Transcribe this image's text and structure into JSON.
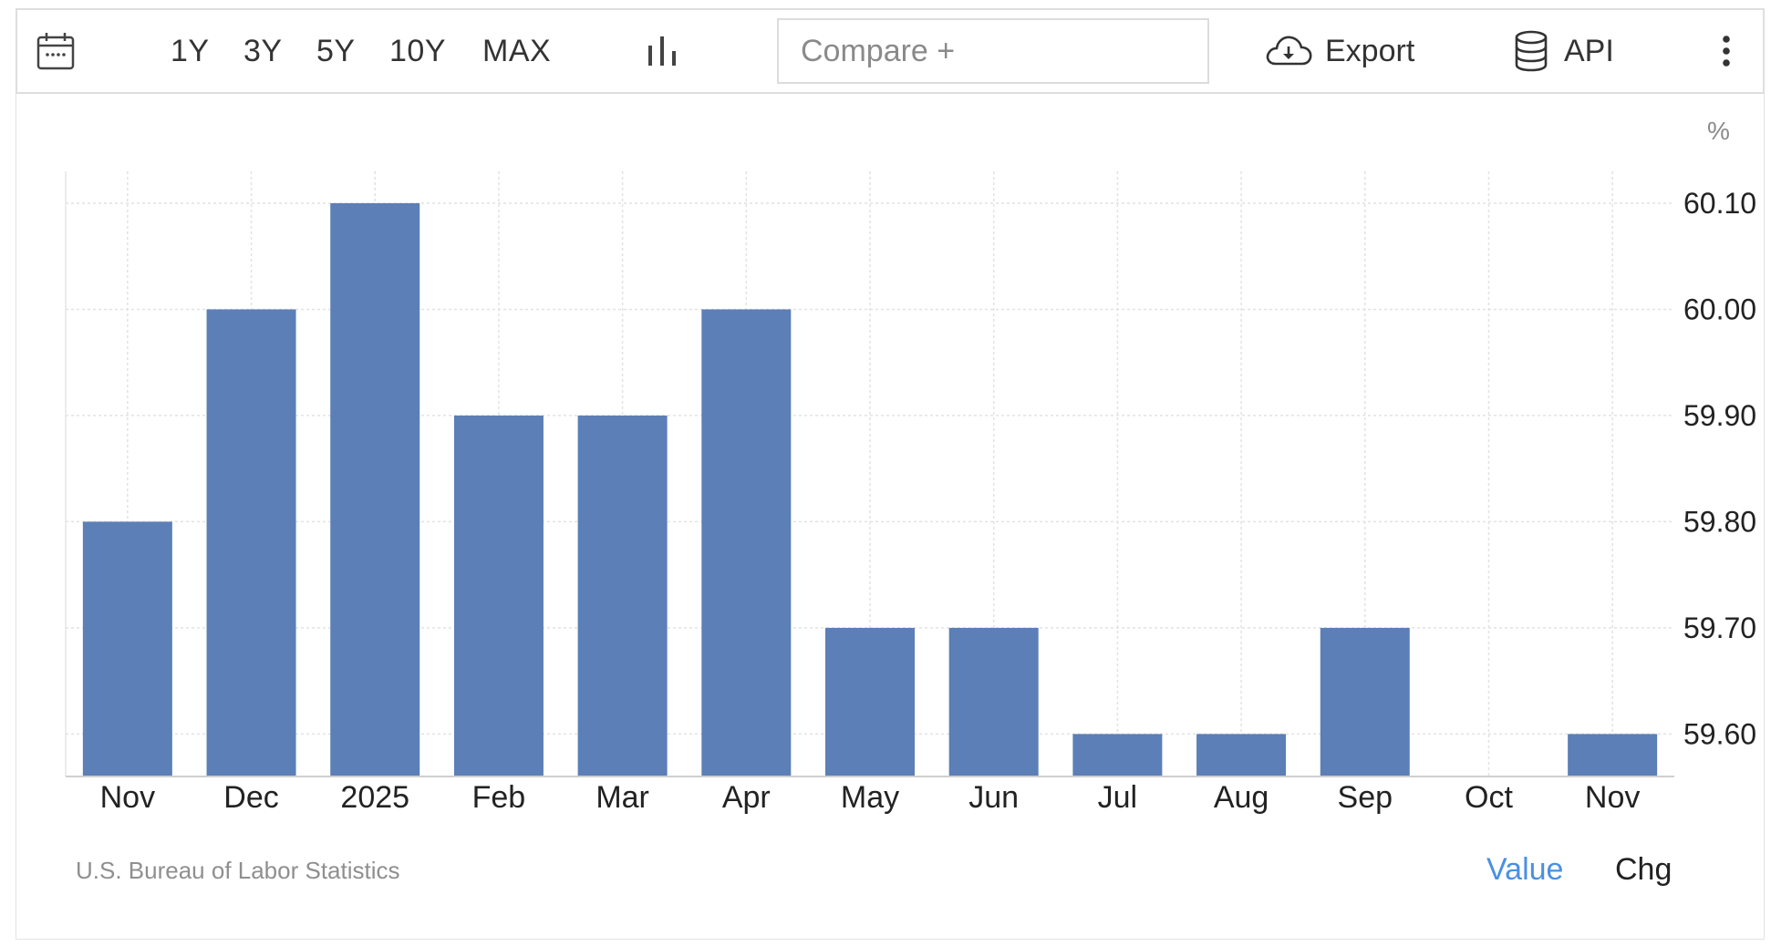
{
  "toolbar": {
    "calendar_icon": "calendar-icon",
    "ranges": [
      "1Y",
      "3Y",
      "5Y",
      "10Y",
      "MAX"
    ],
    "chart_type_icon": "bar-chart-icon",
    "compare_placeholder": "Compare +",
    "export_label": "Export",
    "export_icon": "cloud-download-icon",
    "api_label": "API",
    "api_icon": "database-icon",
    "more_icon": "more-vertical-icon"
  },
  "chart_data": {
    "type": "bar",
    "categories": [
      "Nov",
      "Dec",
      "2025",
      "Feb",
      "Mar",
      "Apr",
      "May",
      "Jun",
      "Jul",
      "Aug",
      "Sep",
      "Oct",
      "Nov"
    ],
    "values": [
      59.8,
      60.0,
      60.1,
      59.9,
      59.9,
      60.0,
      59.7,
      59.7,
      59.6,
      59.6,
      59.7,
      null,
      59.6
    ],
    "unit": "%",
    "yticks": [
      "60.10",
      "60.00",
      "59.90",
      "59.80",
      "59.70",
      "59.60"
    ],
    "ylim": [
      59.56,
      60.13
    ],
    "yaxis_side": "right",
    "grid": true,
    "bar_color": "#5b7fb6"
  },
  "footer": {
    "source": "U.S. Bureau of Labor Statistics",
    "value_label": "Value",
    "chg_label": "Chg"
  },
  "colors": {
    "active_tab": "#4a90e2",
    "grid": "#e2e2e2"
  }
}
